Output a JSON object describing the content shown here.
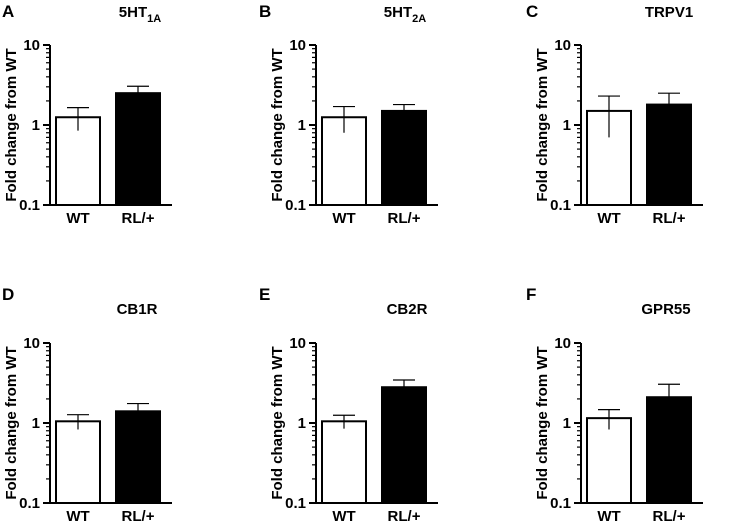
{
  "figure": {
    "ylabel": "Fold change from WT"
  },
  "chart_data": [
    {
      "panel": "A",
      "type": "bar",
      "title": "5HT",
      "title_sub": "1A",
      "ylabel": "Fold change from WT",
      "yscale": "log",
      "ylim": [
        0.1,
        10
      ],
      "yticks": [
        "0.1",
        "1",
        "10"
      ],
      "categories": [
        "WT",
        "RL/+"
      ],
      "values": [
        1.25,
        2.5
      ],
      "errors": [
        0.4,
        0.55
      ],
      "colors": [
        "#ffffff",
        "#000000"
      ]
    },
    {
      "panel": "B",
      "type": "bar",
      "title": "5HT",
      "title_sub": "2A",
      "ylabel": "Fold change from WT",
      "yscale": "log",
      "ylim": [
        0.1,
        10
      ],
      "yticks": [
        "0.1",
        "1",
        "10"
      ],
      "categories": [
        "WT",
        "RL/+"
      ],
      "values": [
        1.25,
        1.5
      ],
      "errors": [
        0.45,
        0.3
      ],
      "colors": [
        "#ffffff",
        "#000000"
      ]
    },
    {
      "panel": "C",
      "type": "bar",
      "title": "TRPV1",
      "title_sub": "",
      "ylabel": "Fold change from WT",
      "yscale": "log",
      "ylim": [
        0.1,
        10
      ],
      "yticks": [
        "0.1",
        "1",
        "10"
      ],
      "categories": [
        "WT",
        "RL/+"
      ],
      "values": [
        1.5,
        1.8
      ],
      "errors": [
        0.8,
        0.7
      ],
      "colors": [
        "#ffffff",
        "#000000"
      ]
    },
    {
      "panel": "D",
      "type": "bar",
      "title": "CB1R",
      "title_sub": "",
      "ylabel": "Fold change from WT",
      "yscale": "log",
      "ylim": [
        0.1,
        10
      ],
      "yticks": [
        "0.1",
        "1",
        "10"
      ],
      "categories": [
        "WT",
        "RL/+"
      ],
      "values": [
        1.05,
        1.4
      ],
      "errors": [
        0.22,
        0.35
      ],
      "colors": [
        "#ffffff",
        "#000000"
      ]
    },
    {
      "panel": "E",
      "type": "bar",
      "title": "CB2R",
      "title_sub": "",
      "ylabel": "Fold change from WT",
      "yscale": "log",
      "ylim": [
        0.1,
        10
      ],
      "yticks": [
        "0.1",
        "1",
        "10"
      ],
      "categories": [
        "WT",
        "RL/+"
      ],
      "values": [
        1.05,
        2.8
      ],
      "errors": [
        0.2,
        0.65
      ],
      "colors": [
        "#ffffff",
        "#000000"
      ]
    },
    {
      "panel": "F",
      "type": "bar",
      "title": "GPR55",
      "title_sub": "",
      "ylabel": "Fold change from WT",
      "yscale": "log",
      "ylim": [
        0.1,
        10
      ],
      "yticks": [
        "0.1",
        "1",
        "10"
      ],
      "categories": [
        "WT",
        "RL/+"
      ],
      "values": [
        1.15,
        2.1
      ],
      "errors": [
        0.32,
        0.95
      ],
      "colors": [
        "#ffffff",
        "#000000"
      ]
    }
  ]
}
